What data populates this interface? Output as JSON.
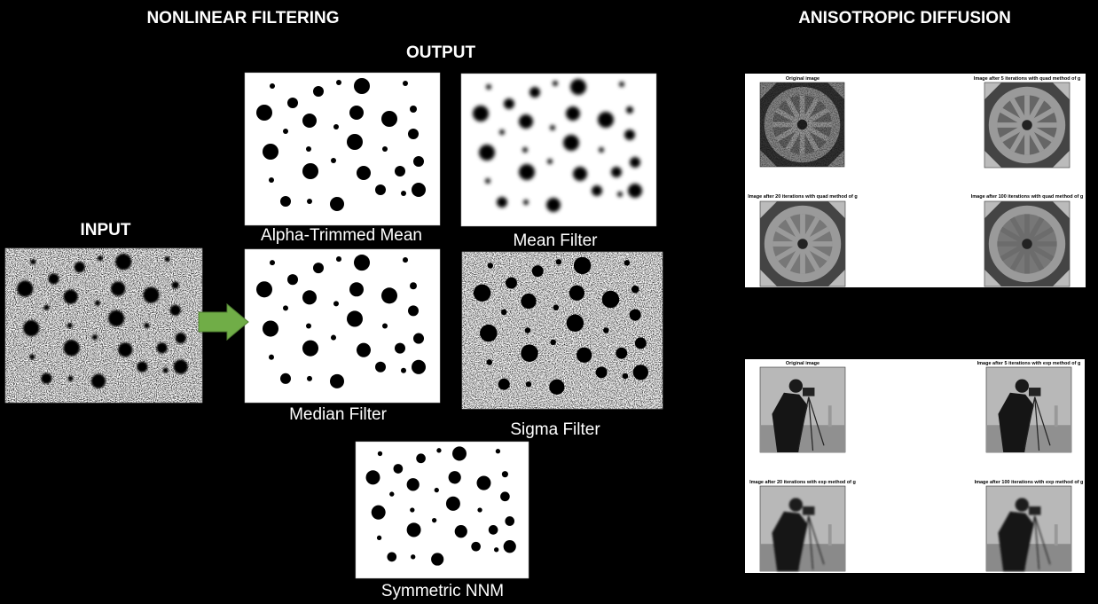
{
  "header": {
    "left_title": "NONLINEAR FILTERING",
    "right_title": "ANISOTROPIC DIFFUSION",
    "output_label": "OUTPUT",
    "input_label": "INPUT"
  },
  "filters": {
    "alpha_trimmed": "Alpha-Trimmed Mean",
    "mean": "Mean Filter",
    "median": "Median Filter",
    "sigma": "Sigma Filter",
    "symmetric": "Symmetric NNM"
  },
  "diffusion": {
    "quad": [
      "Original image",
      "Image after 5 iterations with quad method of g",
      "Image after 20 iterations with quad method of g",
      "Image after 100 iterations with quad method of g"
    ],
    "exp": [
      "Original image",
      "Image after 5 iterations with exp method of g",
      "Image after 20 iterations with exp method of g",
      "Image after 100 iterations with exp method of g"
    ]
  }
}
